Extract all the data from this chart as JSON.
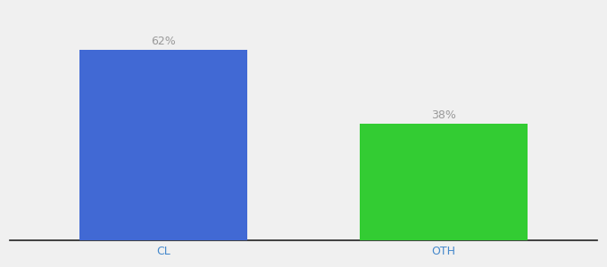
{
  "categories": [
    "CL",
    "OTH"
  ],
  "values": [
    62,
    38
  ],
  "bar_colors": [
    "#4169d4",
    "#33cc33"
  ],
  "label_texts": [
    "62%",
    "38%"
  ],
  "background_color": "#f0f0f0",
  "ylim": [
    0,
    75
  ],
  "bar_width": 0.6,
  "label_fontsize": 9,
  "tick_fontsize": 9,
  "label_color": "#999999",
  "tick_color": "#4488cc",
  "x_positions": [
    0,
    1
  ]
}
